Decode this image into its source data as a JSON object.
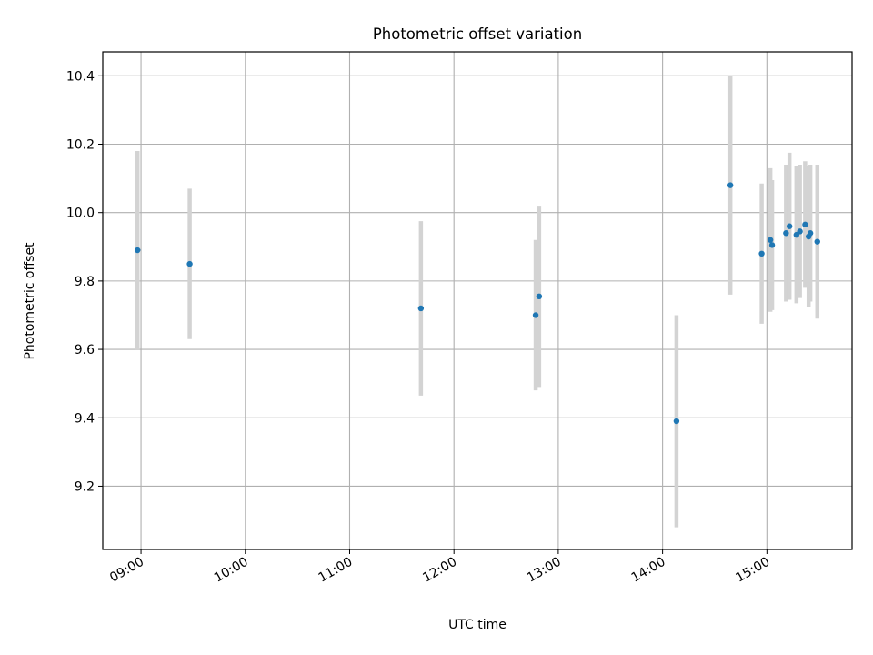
{
  "chart_data": {
    "type": "scatter",
    "title": "Photometric offset variation",
    "xlabel": "UTC time",
    "ylabel": "Photometric offset",
    "x_tick_labels": [
      "09:00",
      "10:00",
      "11:00",
      "12:00",
      "13:00",
      "14:00",
      "15:00"
    ],
    "x_ticks_hours": [
      9,
      10,
      11,
      12,
      13,
      14,
      15
    ],
    "y_ticks": [
      9.2,
      9.4,
      9.6,
      9.8,
      10.0,
      10.2,
      10.4
    ],
    "y_tick_labels": [
      "9.2",
      "9.4",
      "9.6",
      "9.8",
      "10.0",
      "10.2",
      "10.4"
    ],
    "xlim": [
      "08:38",
      "15:49"
    ],
    "ylim": [
      9.015,
      10.47
    ],
    "grid": true,
    "marker_color": "#1f77b4",
    "errorbar_color": "#d3d3d3",
    "points": [
      {
        "x": "08:58",
        "y": 9.89,
        "err": 0.29
      },
      {
        "x": "09:28",
        "y": 9.85,
        "err": 0.22
      },
      {
        "x": "11:41",
        "y": 9.72,
        "err": 0.255
      },
      {
        "x": "12:47",
        "y": 9.7,
        "err": 0.22
      },
      {
        "x": "12:49",
        "y": 9.755,
        "err": 0.265
      },
      {
        "x": "14:08",
        "y": 9.39,
        "err": 0.31
      },
      {
        "x": "14:39",
        "y": 10.08,
        "err": 0.32
      },
      {
        "x": "14:57",
        "y": 9.88,
        "err": 0.205
      },
      {
        "x": "15:02",
        "y": 9.92,
        "err": 0.21
      },
      {
        "x": "15:03",
        "y": 9.905,
        "err": 0.19
      },
      {
        "x": "15:11",
        "y": 9.94,
        "err": 0.2
      },
      {
        "x": "15:13",
        "y": 9.96,
        "err": 0.215
      },
      {
        "x": "15:17",
        "y": 9.935,
        "err": 0.2
      },
      {
        "x": "15:19",
        "y": 9.945,
        "err": 0.195
      },
      {
        "x": "15:22",
        "y": 9.965,
        "err": 0.185
      },
      {
        "x": "15:24",
        "y": 9.93,
        "err": 0.205
      },
      {
        "x": "15:25",
        "y": 9.94,
        "err": 0.2
      },
      {
        "x": "15:29",
        "y": 9.915,
        "err": 0.225
      }
    ]
  }
}
